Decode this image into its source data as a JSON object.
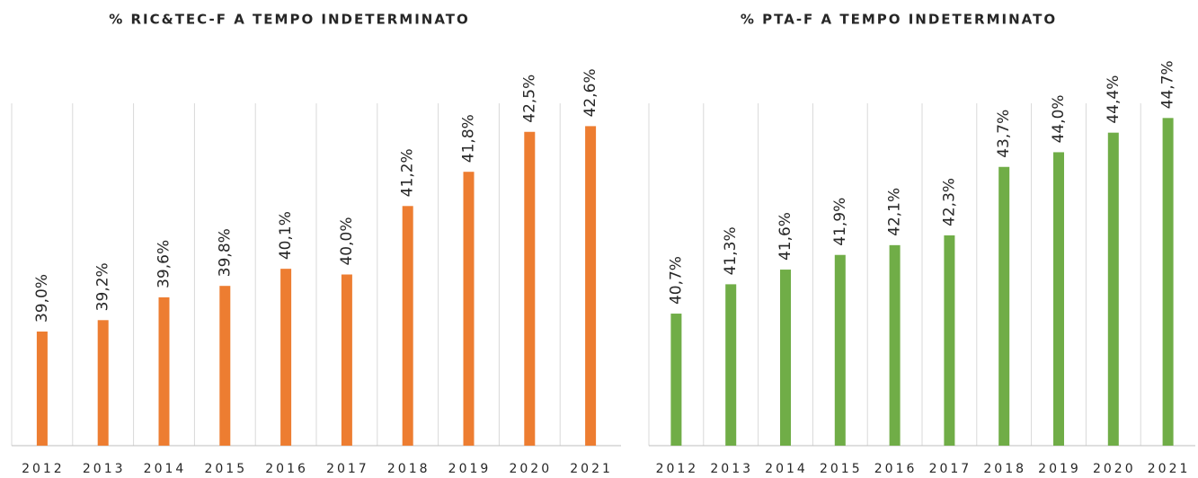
{
  "chart_data": [
    {
      "type": "bar",
      "title": "% RIC&TEC-F A TEMPO INDETERMINATO",
      "categories": [
        "2012",
        "2013",
        "2014",
        "2015",
        "2016",
        "2017",
        "2018",
        "2019",
        "2020",
        "2021"
      ],
      "values": [
        39.0,
        39.2,
        39.6,
        39.8,
        40.1,
        40.0,
        41.2,
        41.8,
        42.5,
        42.6
      ],
      "value_labels": [
        "39,0%",
        "39,2%",
        "39,6%",
        "39,8%",
        "40,1%",
        "40,0%",
        "41,2%",
        "41,8%",
        "42,5%",
        "42,6%"
      ],
      "color": "#ed7d31",
      "ylim": [
        37,
        43
      ],
      "grid": true
    },
    {
      "type": "bar",
      "title": "% PTA-F A TEMPO INDETERMINATO",
      "categories": [
        "2012",
        "2013",
        "2014",
        "2015",
        "2016",
        "2017",
        "2018",
        "2019",
        "2020",
        "2021"
      ],
      "values": [
        40.7,
        41.3,
        41.6,
        41.9,
        42.1,
        42.3,
        43.7,
        44.0,
        44.4,
        44.7
      ],
      "value_labels": [
        "40,7%",
        "41,3%",
        "41,6%",
        "41,9%",
        "42,1%",
        "42,3%",
        "43,7%",
        "44,0%",
        "44,4%",
        "44,7%"
      ],
      "color": "#70ad47",
      "ylim": [
        38,
        45
      ],
      "grid": true
    }
  ]
}
